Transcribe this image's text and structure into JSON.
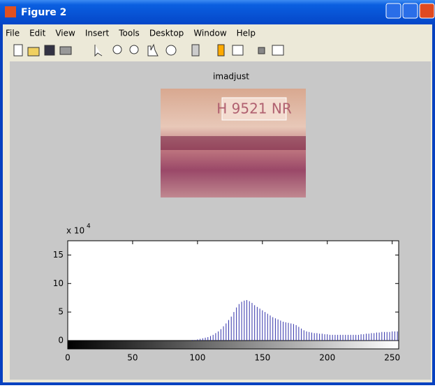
{
  "window": {
    "title": "Figure 2"
  },
  "menu": [
    "File",
    "Edit",
    "View",
    "Insert",
    "Tools",
    "Desktop",
    "Window",
    "Help"
  ],
  "image": {
    "title": "imadjust",
    "plate_text": "H 9521 NR"
  },
  "chart_data": {
    "type": "stem",
    "color": "#3333aa",
    "y_multiplier": "x 10",
    "y_exponent": "4",
    "xlim": [
      0,
      255
    ],
    "ylim": [
      0,
      17.5
    ],
    "xticks": [
      0,
      50,
      100,
      150,
      200,
      250
    ],
    "yticks": [
      0,
      5,
      10,
      15
    ],
    "x": [
      96,
      98,
      100,
      102,
      104,
      106,
      108,
      110,
      112,
      114,
      116,
      118,
      120,
      122,
      124,
      126,
      128,
      130,
      132,
      134,
      136,
      138,
      140,
      142,
      144,
      146,
      148,
      150,
      152,
      154,
      156,
      158,
      160,
      162,
      164,
      166,
      168,
      170,
      172,
      174,
      176,
      178,
      180,
      182,
      184,
      186,
      188,
      190,
      192,
      194,
      196,
      198,
      200,
      202,
      204,
      206,
      208,
      210,
      212,
      214,
      216,
      218,
      220,
      222,
      224,
      226,
      228,
      230,
      232,
      234,
      236,
      238,
      240,
      242,
      244,
      246,
      248,
      250,
      252,
      254
    ],
    "values": [
      0.1,
      0.1,
      0.2,
      0.3,
      0.4,
      0.5,
      0.6,
      0.8,
      1.0,
      1.3,
      1.6,
      2.0,
      2.5,
      3.0,
      3.6,
      4.2,
      5.0,
      5.8,
      6.4,
      6.8,
      7.0,
      7.1,
      6.9,
      6.6,
      6.2,
      5.9,
      5.6,
      5.3,
      5.0,
      4.7,
      4.4,
      4.1,
      3.9,
      3.7,
      3.5,
      3.3,
      3.2,
      3.1,
      3.0,
      2.9,
      2.7,
      2.4,
      2.1,
      1.8,
      1.6,
      1.5,
      1.4,
      1.3,
      1.3,
      1.2,
      1.2,
      1.1,
      1.1,
      1.0,
      1.0,
      1.0,
      1.0,
      1.0,
      1.0,
      1.0,
      1.0,
      1.0,
      1.0,
      1.0,
      1.0,
      1.1,
      1.1,
      1.2,
      1.2,
      1.3,
      1.3,
      1.4,
      1.4,
      1.5,
      1.5,
      1.5,
      1.5,
      1.6,
      1.6,
      1.6
    ]
  }
}
